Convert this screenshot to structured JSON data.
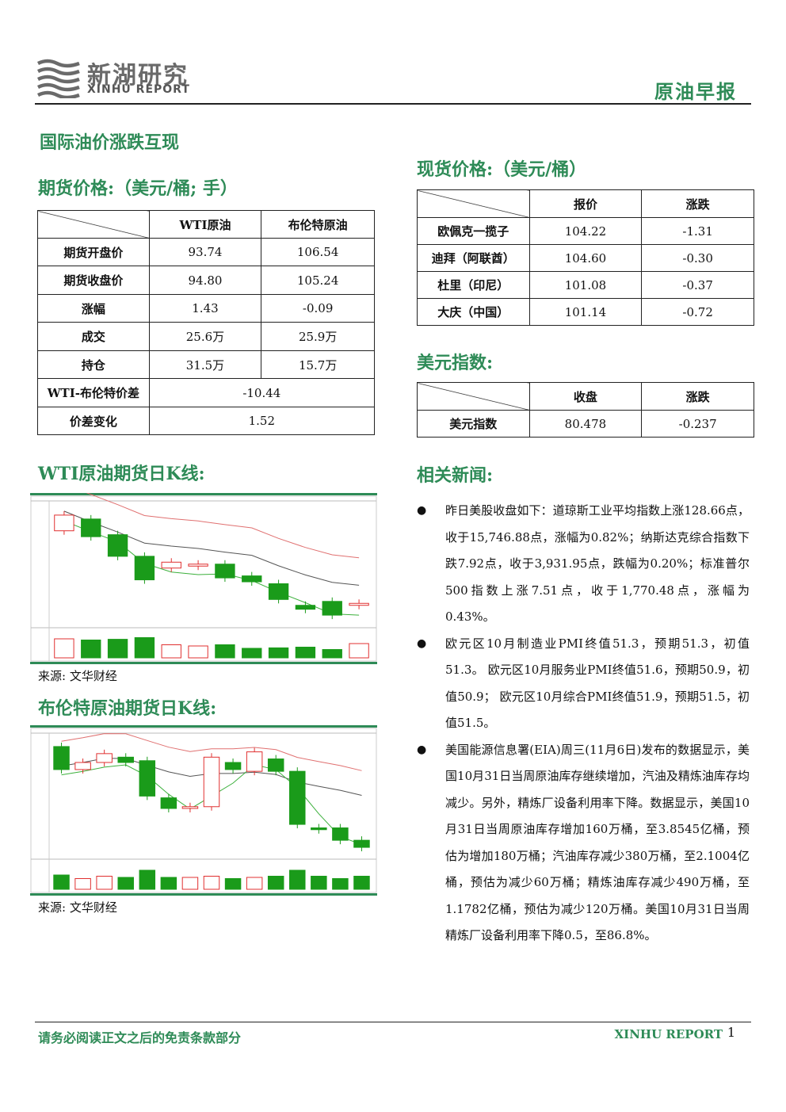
{
  "header": {
    "logo_cn": "新湖研究",
    "logo_en": "XINHU REPORT",
    "doc_type": "原油早报"
  },
  "main_title": "国际油价涨跌互现",
  "futures": {
    "title": "期货价格:（美元/桶; 手）",
    "columns": [
      "WTI原油",
      "布伦特原油"
    ],
    "rows": [
      {
        "label": "期货开盘价",
        "wti": "93.74",
        "brent": "106.54"
      },
      {
        "label": "期货收盘价",
        "wti": "94.80",
        "brent": "105.24"
      },
      {
        "label": "涨幅",
        "wti": "1.43",
        "brent": "-0.09"
      },
      {
        "label": "成交",
        "wti": "25.6万",
        "brent": "25.9万"
      },
      {
        "label": "持仓",
        "wti": "31.5万",
        "brent": "15.7万"
      }
    ],
    "spread": {
      "label": "WTI-布伦特价差",
      "value": "-10.44"
    },
    "spread_change": {
      "label": "价差变化",
      "value": "1.52"
    }
  },
  "spot": {
    "title": "现货价格:（美元/桶）",
    "columns": [
      "报价",
      "涨跌"
    ],
    "rows": [
      {
        "label": "欧佩克一揽子",
        "price": "104.22",
        "change": "-1.31"
      },
      {
        "label": "迪拜（阿联酋）",
        "price": "104.60",
        "change": "-0.30"
      },
      {
        "label": "杜里（印尼）",
        "price": "101.08",
        "change": "-0.37"
      },
      {
        "label": "大庆（中国）",
        "price": "101.14",
        "change": "-0.72"
      }
    ]
  },
  "usd_index": {
    "title": "美元指数:",
    "columns": [
      "收盘",
      "涨跌"
    ],
    "row": {
      "label": "美元指数",
      "close": "80.478",
      "change": "-0.237"
    }
  },
  "wti_chart": {
    "title": "WTI原油期货日K线:",
    "source": "来源: 文华财经",
    "candles": [
      {
        "o": 96.2,
        "c": 97.0
      },
      {
        "o": 96.8,
        "c": 95.9
      },
      {
        "o": 96.0,
        "c": 94.9
      },
      {
        "o": 94.9,
        "c": 93.7
      },
      {
        "o": 94.3,
        "c": 94.6
      },
      {
        "o": 94.4,
        "c": 94.5
      },
      {
        "o": 94.5,
        "c": 93.8
      },
      {
        "o": 93.9,
        "c": 93.6
      },
      {
        "o": 93.5,
        "c": 92.7
      },
      {
        "o": 92.4,
        "c": 92.2
      },
      {
        "o": 92.6,
        "c": 91.9
      },
      {
        "o": 92.4,
        "c": 92.5
      }
    ],
    "volumes": [
      0.8,
      0.75,
      0.78,
      0.85,
      0.55,
      0.5,
      0.55,
      0.4,
      0.42,
      0.45,
      0.35,
      0.6
    ]
  },
  "brent_chart": {
    "title": "布伦特原油期货日K线:",
    "source": "来源: 文华财经",
    "candles": [
      {
        "o": 108.2,
        "c": 106.9
      },
      {
        "o": 106.9,
        "c": 107.3
      },
      {
        "o": 107.3,
        "c": 107.8
      },
      {
        "o": 107.6,
        "c": 107.3
      },
      {
        "o": 107.4,
        "c": 105.4
      },
      {
        "o": 105.3,
        "c": 104.7
      },
      {
        "o": 104.7,
        "c": 104.8
      },
      {
        "o": 104.8,
        "c": 107.6
      },
      {
        "o": 107.3,
        "c": 106.9
      },
      {
        "o": 106.8,
        "c": 107.9
      },
      {
        "o": 107.5,
        "c": 106.8
      },
      {
        "o": 106.8,
        "c": 103.8
      },
      {
        "o": 103.6,
        "c": 103.5
      },
      {
        "o": 103.6,
        "c": 102.9
      },
      {
        "o": 102.9,
        "c": 102.5
      }
    ],
    "volumes": [
      0.6,
      0.45,
      0.55,
      0.5,
      0.8,
      0.5,
      0.5,
      0.55,
      0.45,
      0.5,
      0.55,
      0.8,
      0.55,
      0.45,
      0.55
    ]
  },
  "news": {
    "title": "相关新闻:",
    "items": [
      "昨日美股收盘如下：道琼斯工业平均指数上涨128.66点，收于15,746.88点，涨幅为0.82%；纳斯达克综合指数下跌7.92点，收于3,931.95点，跌幅为0.20%；标准普尔500指数上涨7.51点，收于1,770.48点，涨幅为0.43%。",
      "欧元区10月制造业PMI终值51.3，预期51.3，初值51.3。 欧元区10月服务业PMI终值51.6，预期50.9，初值50.9； 欧元区10月综合PMI终值51.9，预期51.5，初值51.5。",
      "美国能源信息署(EIA)周三(11月6日)发布的数据显示，美国10月31日当周原油库存继续增加，汽油及精炼油库存均减少。另外，精炼厂设备利用率下降。数据显示，美国10月31日当周原油库存增加160万桶，至3.8545亿桶，预估为增加180万桶；汽油库存减少380万桶，至2.1004亿桶，预估为减少60万桶；精炼油库存减少490万桶，至1.1782亿桶，预估为减少120万桶。美国10月31日当周精炼厂设备利用率下降0.5，至86.8%。"
    ]
  },
  "footer": {
    "disclaimer": "请务必阅读正文之后的免责条款部分",
    "brand": "XINHU REPORT",
    "page": "1"
  },
  "colors": {
    "accent": "#2e8b57",
    "up": "#e03030",
    "down": "#1a9b1a"
  }
}
